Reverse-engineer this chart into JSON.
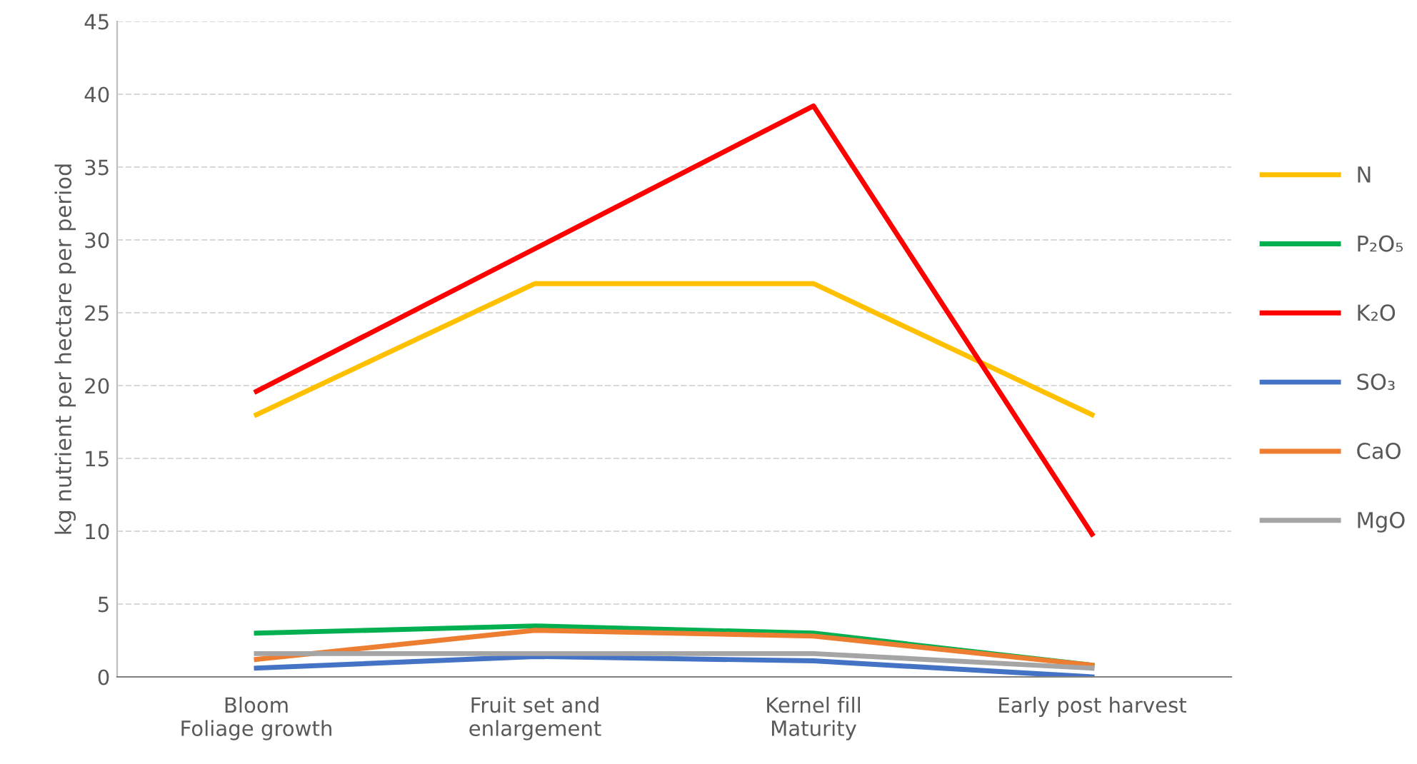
{
  "chart_data": {
    "type": "line",
    "ylabel": "kg nutrient per hectare per period",
    "categories": [
      "Bloom\nFoliage growth",
      "Fruit set and\nenlargement",
      "Kernel fill\nMaturity",
      "Early post harvest"
    ],
    "series": [
      {
        "name": "N",
        "color": "#ffc000",
        "values": [
          18,
          27,
          27,
          18
        ]
      },
      {
        "name": "P₂O₅",
        "color": "#00b050",
        "values": [
          3.0,
          3.5,
          3.0,
          0.8
        ]
      },
      {
        "name": "K₂O",
        "color": "#ff0000",
        "values": [
          19.6,
          29.4,
          39.2,
          9.8
        ]
      },
      {
        "name": "SO₃",
        "color": "#4472c4",
        "values": [
          0.6,
          1.4,
          1.1,
          0.0
        ]
      },
      {
        "name": "CaO",
        "color": "#ed7d31",
        "values": [
          1.2,
          3.2,
          2.8,
          0.8
        ]
      },
      {
        "name": "MgO",
        "color": "#a5a5a5",
        "values": [
          1.6,
          1.6,
          1.6,
          0.6
        ]
      }
    ],
    "ylim": [
      0,
      45
    ],
    "yticks": [
      0,
      5,
      10,
      15,
      20,
      25,
      30,
      35,
      40,
      45
    ],
    "grid": "y",
    "legend": "right",
    "marker": "none",
    "line_style": "solid"
  }
}
